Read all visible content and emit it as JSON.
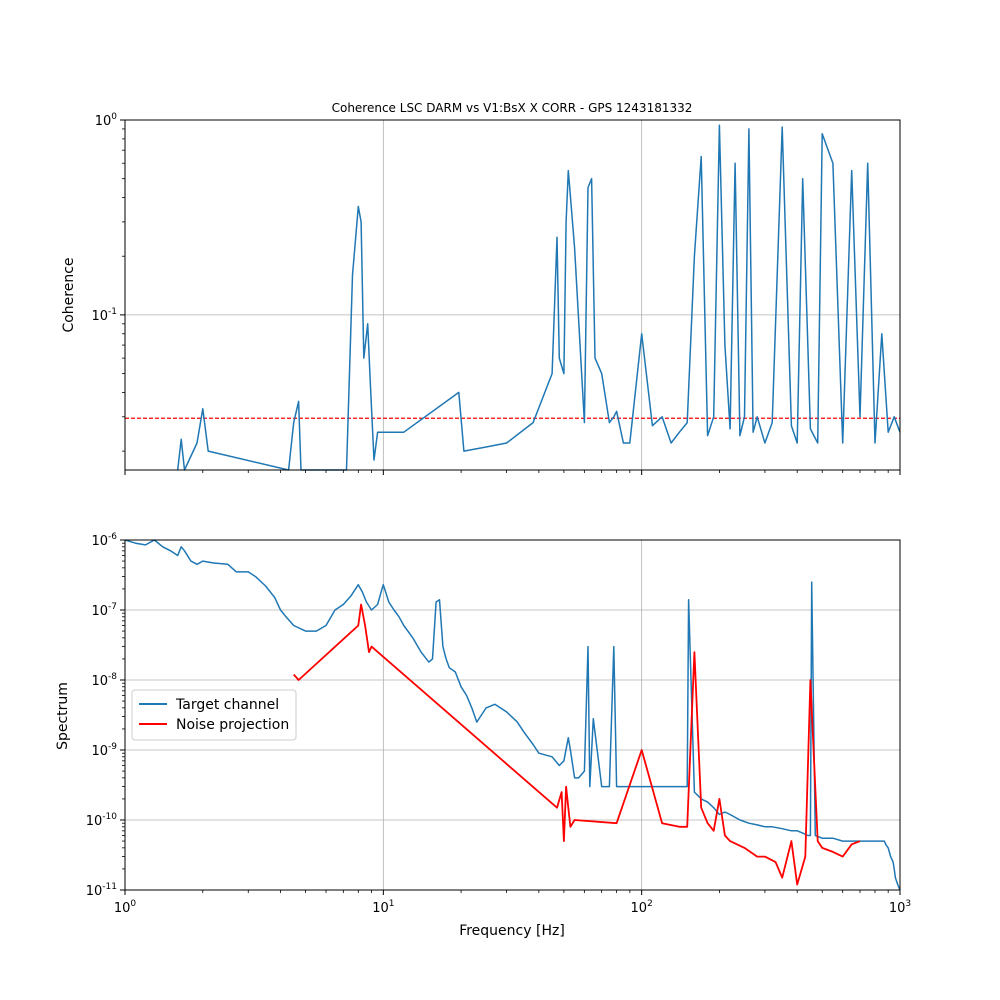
{
  "chart_data": [
    {
      "type": "line",
      "title": "Coherence LSC DARM vs V1:BsX X CORR - GPS 1243181332",
      "xlabel": "",
      "ylabel": "Coherence",
      "xscale": "log",
      "yscale": "log",
      "xlim": [
        1,
        1000
      ],
      "ylim": [
        0.016,
        1.0
      ],
      "yticks": [
        "10^-1",
        "10^0"
      ],
      "grid": true,
      "series": [
        {
          "color": "#1f77b4",
          "x": [
            1.6,
            1.65,
            1.7,
            1.9,
            2.0,
            2.1,
            4.3,
            4.5,
            4.7,
            4.8,
            7.2,
            7.6,
            8.0,
            8.2,
            8.4,
            8.7,
            8.9,
            9.2,
            9.5,
            12.0,
            19.6,
            20.5,
            25,
            30,
            38,
            45,
            47,
            48,
            50,
            51,
            52,
            54,
            55,
            60,
            62,
            64,
            66,
            70,
            75,
            78,
            80,
            85,
            90,
            100,
            110,
            120,
            130,
            140,
            150,
            160,
            170,
            180,
            190,
            200,
            210,
            220,
            230,
            240,
            250,
            260,
            270,
            280,
            300,
            320,
            350,
            380,
            400,
            420,
            450,
            480,
            500,
            550,
            600,
            650,
            700,
            750,
            800,
            850,
            900,
            950,
            1000
          ],
          "y": [
            0.016,
            0.023,
            0.016,
            0.022,
            0.033,
            0.02,
            0.016,
            0.028,
            0.036,
            0.016,
            0.016,
            0.16,
            0.36,
            0.3,
            0.06,
            0.09,
            0.045,
            0.018,
            0.025,
            0.025,
            0.04,
            0.02,
            0.021,
            0.022,
            0.028,
            0.05,
            0.25,
            0.06,
            0.05,
            0.3,
            0.55,
            0.3,
            0.22,
            0.028,
            0.45,
            0.5,
            0.06,
            0.05,
            0.028,
            0.03,
            0.032,
            0.022,
            0.022,
            0.08,
            0.027,
            0.03,
            0.022,
            0.025,
            0.028,
            0.2,
            0.65,
            0.024,
            0.03,
            0.94,
            0.07,
            0.026,
            0.6,
            0.024,
            0.03,
            0.9,
            0.025,
            0.03,
            0.022,
            0.028,
            0.92,
            0.027,
            0.022,
            0.5,
            0.026,
            0.022,
            0.85,
            0.6,
            0.022,
            0.55,
            0.03,
            0.6,
            0.022,
            0.08,
            0.025,
            0.03,
            0.025
          ]
        }
      ],
      "threshold": {
        "value": 0.0295,
        "color": "#ff0000",
        "style": "dashed"
      }
    },
    {
      "type": "line",
      "title": "",
      "xlabel": "Frequency [Hz]",
      "ylabel": "Spectrum",
      "xscale": "log",
      "yscale": "log",
      "xlim": [
        1,
        1000
      ],
      "ylim": [
        1e-11,
        1e-06
      ],
      "xticks": [
        "10^0",
        "10^1",
        "10^2",
        "10^3"
      ],
      "yticks": [
        "10^-11",
        "10^-10",
        "10^-9",
        "10^-8",
        "10^-7",
        "10^-6"
      ],
      "grid": true,
      "legend_position": "center-left",
      "series": [
        {
          "name": "Target channel",
          "color": "#1f77b4",
          "x": [
            1,
            1.1,
            1.2,
            1.3,
            1.4,
            1.5,
            1.6,
            1.65,
            1.7,
            1.8,
            1.9,
            2.0,
            2.2,
            2.5,
            2.7,
            2.8,
            3.0,
            3.2,
            3.5,
            3.8,
            4.0,
            4.2,
            4.5,
            5.0,
            5.5,
            6.0,
            6.5,
            7.0,
            7.5,
            8.0,
            8.3,
            8.6,
            9.0,
            9.5,
            9.8,
            10.0,
            10.5,
            11,
            11.5,
            12,
            13,
            14,
            15,
            15.5,
            16,
            16.5,
            17,
            17.5,
            18,
            19,
            20,
            21,
            22,
            23,
            25,
            27,
            30,
            33,
            35,
            38,
            40,
            45,
            48,
            50,
            52,
            53,
            55,
            57,
            60,
            62,
            63,
            65,
            70,
            75,
            78,
            80,
            85,
            90,
            100,
            110,
            120,
            130,
            140,
            150,
            152,
            160,
            170,
            180,
            190,
            200,
            210,
            220,
            240,
            260,
            280,
            300,
            320,
            350,
            380,
            400,
            420,
            440,
            450,
            455,
            470,
            500,
            550,
            600,
            650,
            700,
            750,
            800,
            850,
            870,
            880,
            900,
            920,
            940,
            950,
            960,
            980,
            1000
          ],
          "y": [
            1e-06,
            9e-07,
            8.5e-07,
            1e-06,
            8e-07,
            7e-07,
            6e-07,
            8e-07,
            7e-07,
            5e-07,
            4.5e-07,
            5e-07,
            4.7e-07,
            4.5e-07,
            3.5e-07,
            3.5e-07,
            3.5e-07,
            3e-07,
            2.2e-07,
            1.5e-07,
            1e-07,
            8e-08,
            6e-08,
            5e-08,
            5e-08,
            6e-08,
            1e-07,
            1.2e-07,
            1.6e-07,
            2.3e-07,
            1.8e-07,
            1.3e-07,
            1e-07,
            1.2e-07,
            1.8e-07,
            2.3e-07,
            1.3e-07,
            1e-07,
            8e-08,
            6e-08,
            4e-08,
            2.5e-08,
            1.8e-08,
            2e-08,
            1.3e-07,
            1.4e-07,
            3e-08,
            2e-08,
            1.5e-08,
            1.3e-08,
            8e-09,
            6e-09,
            4e-09,
            2.5e-09,
            4e-09,
            4.5e-09,
            3.5e-09,
            2.5e-09,
            1.8e-09,
            1.2e-09,
            9e-10,
            8e-10,
            6e-10,
            7e-10,
            1.5e-09,
            1e-09,
            4e-10,
            4e-10,
            5e-10,
            3e-08,
            3e-10,
            2.8e-09,
            3e-10,
            3e-10,
            3e-08,
            3e-10,
            3e-10,
            3e-10,
            3e-10,
            3e-10,
            3e-10,
            3e-10,
            3e-10,
            3e-10,
            1.4e-07,
            2.5e-10,
            2e-10,
            1.8e-10,
            1.5e-10,
            1.2e-10,
            1.3e-10,
            1.2e-10,
            1e-10,
            9e-11,
            8.5e-11,
            8e-11,
            8e-11,
            7.5e-11,
            7e-11,
            7e-11,
            6.5e-11,
            6e-11,
            6e-11,
            2.5e-07,
            6e-11,
            5.5e-11,
            5.5e-11,
            5e-11,
            5e-11,
            5e-11,
            5e-11,
            5e-11,
            5e-11,
            5e-11,
            4.5e-11,
            4e-11,
            3e-11,
            2.5e-11,
            2e-11,
            1.5e-11,
            1.2e-11,
            1e-11
          ]
        },
        {
          "name": "Noise projection",
          "color": "#ff0000",
          "x": [
            4.5,
            4.7,
            8.0,
            8.2,
            8.5,
            8.8,
            9.0,
            47,
            49,
            50,
            51,
            52,
            53,
            55,
            80,
            100,
            120,
            140,
            150,
            160,
            170,
            180,
            190,
            200,
            210,
            220,
            250,
            280,
            300,
            330,
            350,
            380,
            400,
            430,
            450,
            480,
            500,
            550,
            600,
            650,
            700
          ],
          "y": [
            1.2e-08,
            1e-08,
            6e-08,
            1.2e-07,
            6e-08,
            2.5e-08,
            3e-08,
            1.5e-10,
            2.5e-10,
            5e-11,
            3e-10,
            1.5e-10,
            8e-11,
            1e-10,
            9e-11,
            1e-09,
            9e-11,
            8e-11,
            8e-11,
            2.5e-08,
            1.5e-10,
            9e-11,
            7e-11,
            2e-10,
            6e-11,
            5e-11,
            4e-11,
            3e-11,
            3e-11,
            2.5e-11,
            1.5e-11,
            5e-11,
            1.2e-11,
            3e-11,
            1e-08,
            5e-11,
            4e-11,
            3.5e-11,
            3e-11,
            4.5e-11,
            5e-11
          ]
        }
      ]
    }
  ]
}
